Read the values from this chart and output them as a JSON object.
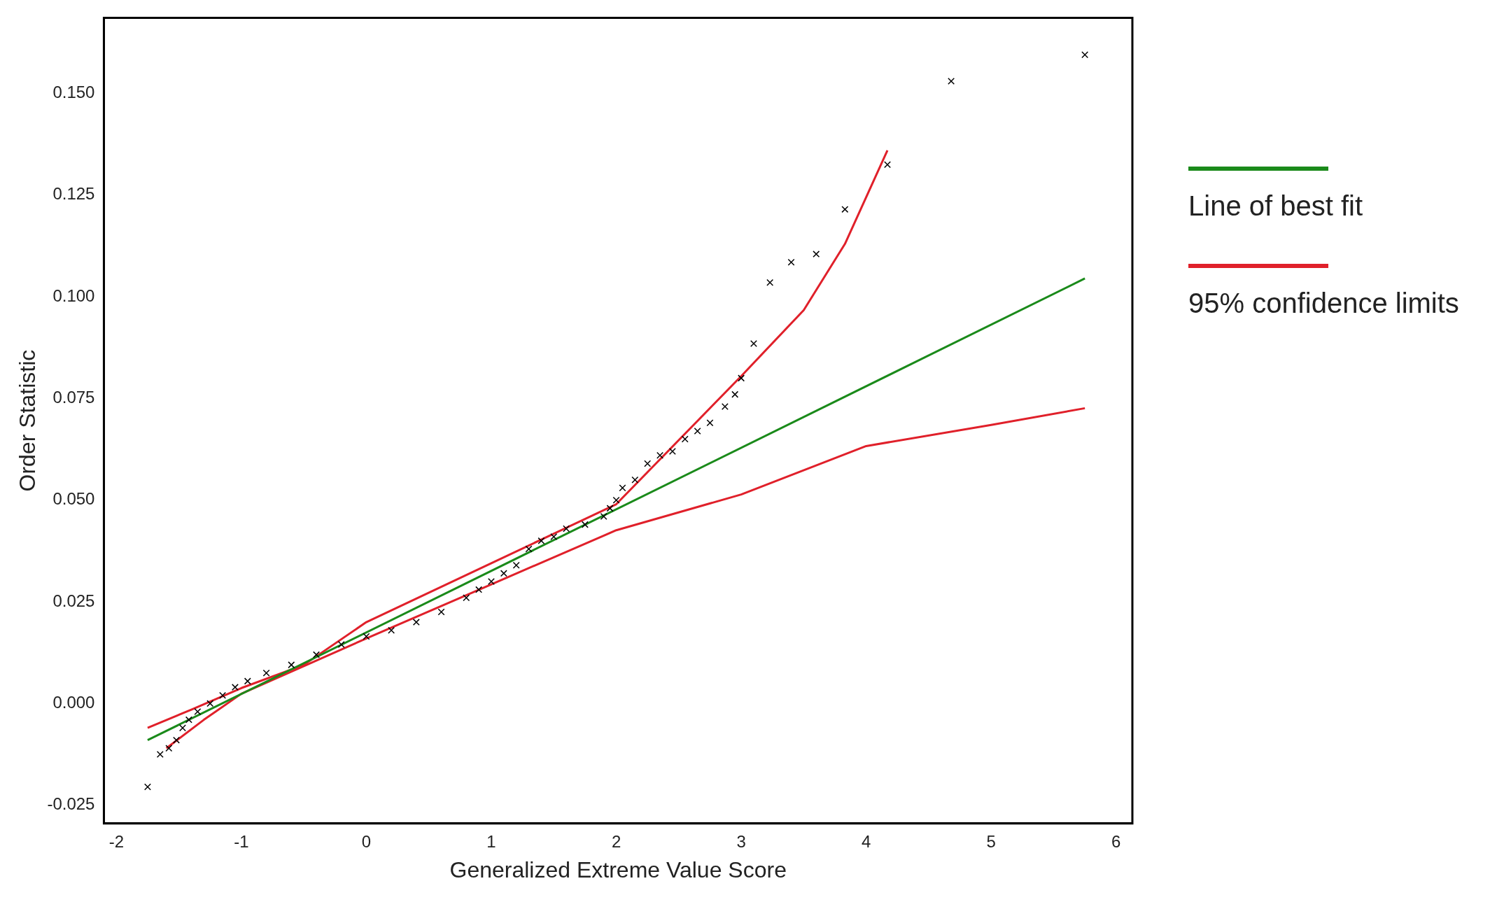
{
  "chart_data": {
    "type": "scatter",
    "xlabel": "Generalized Extreme Value Score",
    "ylabel": "Order Statistic",
    "xlim": [
      -2.1,
      6.13
    ],
    "ylim": [
      -0.0295,
      0.1686
    ],
    "xticks": [
      -2,
      -1,
      0,
      1,
      2,
      3,
      4,
      5,
      6
    ],
    "yticks": [
      {
        "value": -0.025,
        "label": "-0.025"
      },
      {
        "value": 0,
        "label": "0.000"
      },
      {
        "value": 0.025,
        "label": "0.025"
      },
      {
        "value": 0.05,
        "label": "0.050"
      },
      {
        "value": 0.075,
        "label": "0.075"
      },
      {
        "value": 0.1,
        "label": "0.100"
      },
      {
        "value": 0.125,
        "label": "0.125"
      },
      {
        "value": 0.15,
        "label": "0.150"
      }
    ],
    "grid": false,
    "legend": "right",
    "marker": "cross",
    "series": [
      {
        "color": "#000000",
        "x": [
          -1.75,
          -1.65,
          -1.58,
          -1.52,
          -1.47,
          -1.42,
          -1.35,
          -1.25,
          -1.15,
          -1.05,
          -0.95,
          -0.8,
          -0.6,
          -0.4,
          -0.2,
          0,
          0.2,
          0.4,
          0.6,
          0.8,
          0.9,
          1.0,
          1.1,
          1.2,
          1.3,
          1.4,
          1.5,
          1.6,
          1.75,
          1.9,
          1.95,
          2.0,
          2.05,
          2.15,
          2.25,
          2.35,
          2.45,
          2.55,
          2.65,
          2.75,
          2.87,
          2.95,
          3.0,
          3.1,
          3.23,
          3.4,
          3.6,
          3.83,
          4.17,
          4.68,
          5.75
        ],
        "values": [
          -0.0205,
          -0.0125,
          -0.011,
          -0.009,
          -0.006,
          -0.004,
          -0.002,
          0.0,
          0.002,
          0.004,
          0.0055,
          0.0075,
          0.0095,
          0.012,
          0.0145,
          0.0165,
          0.018,
          0.02,
          0.0225,
          0.026,
          0.028,
          0.03,
          0.032,
          0.034,
          0.038,
          0.04,
          0.041,
          0.043,
          0.044,
          0.046,
          0.048,
          0.05,
          0.053,
          0.055,
          0.059,
          0.061,
          0.062,
          0.065,
          0.067,
          0.069,
          0.073,
          0.076,
          0.08,
          0.0885,
          0.1035,
          0.1085,
          0.1105,
          0.1215,
          0.1325,
          0.153,
          0.1595
        ]
      },
      {
        "type": "line",
        "name": "Line of best fit",
        "color": "#1a8a1a",
        "marker": "none",
        "x": [
          -1.75,
          5.75
        ],
        "values": [
          -0.009,
          0.1045
        ]
      },
      {
        "type": "line",
        "name": "95% confidence limits",
        "color": "#e0202a",
        "marker": "none",
        "x": [
          -1.75,
          -1.4,
          -1,
          -0.5,
          0,
          1,
          2,
          3,
          3.5,
          3.83,
          4.17
        ],
        "values": [
          -0.006,
          -0.0015,
          0.0038,
          0.0095,
          0.02,
          0.0345,
          0.049,
          0.0805,
          0.0967,
          0.113,
          0.136
        ]
      },
      {
        "type": "line",
        "color": "#e0202a",
        "marker": "none",
        "x": [
          -1.6,
          -1.3,
          -1,
          0,
          1,
          2,
          3,
          4,
          5,
          5.75
        ],
        "values": [
          -0.011,
          -0.004,
          0.0024,
          0.016,
          0.0293,
          0.0426,
          0.0514,
          0.0633,
          0.0685,
          0.0726
        ]
      }
    ]
  }
}
